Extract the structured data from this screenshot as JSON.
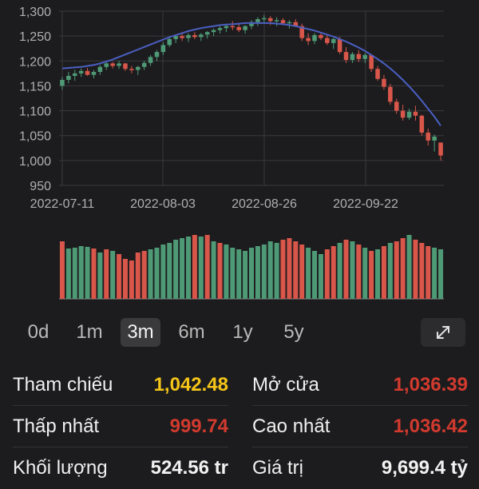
{
  "chart_data": {
    "type": "candlestick",
    "y_ticks": [
      1300,
      1250,
      1200,
      1150,
      1100,
      1050,
      1000,
      950
    ],
    "ylim": [
      950,
      1300
    ],
    "x_ticks": [
      "2022-07-11",
      "2022-08-03",
      "2022-08-26",
      "2022-09-22"
    ],
    "grid": true,
    "candles": [
      [
        1150,
        1168,
        1142,
        1162
      ],
      [
        1162,
        1178,
        1155,
        1170
      ],
      [
        1170,
        1182,
        1160,
        1175
      ],
      [
        1175,
        1185,
        1168,
        1180
      ],
      [
        1180,
        1186,
        1170,
        1172
      ],
      [
        1172,
        1182,
        1165,
        1178
      ],
      [
        1178,
        1192,
        1172,
        1188
      ],
      [
        1188,
        1200,
        1182,
        1195
      ],
      [
        1195,
        1198,
        1185,
        1190
      ],
      [
        1190,
        1200,
        1184,
        1195
      ],
      [
        1195,
        1196,
        1180,
        1184
      ],
      [
        1184,
        1190,
        1175,
        1182
      ],
      [
        1182,
        1190,
        1172,
        1188
      ],
      [
        1188,
        1200,
        1182,
        1196
      ],
      [
        1196,
        1212,
        1190,
        1208
      ],
      [
        1208,
        1222,
        1200,
        1218
      ],
      [
        1218,
        1238,
        1212,
        1232
      ],
      [
        1232,
        1248,
        1228,
        1244
      ],
      [
        1244,
        1252,
        1236,
        1250
      ],
      [
        1250,
        1255,
        1240,
        1246
      ],
      [
        1246,
        1256,
        1238,
        1252
      ],
      [
        1252,
        1258,
        1244,
        1248
      ],
      [
        1248,
        1256,
        1240,
        1253
      ],
      [
        1253,
        1260,
        1245,
        1258
      ],
      [
        1258,
        1265,
        1250,
        1262
      ],
      [
        1262,
        1270,
        1255,
        1266
      ],
      [
        1266,
        1275,
        1258,
        1270
      ],
      [
        1270,
        1280,
        1262,
        1268
      ],
      [
        1268,
        1276,
        1258,
        1262
      ],
      [
        1262,
        1272,
        1255,
        1270
      ],
      [
        1270,
        1282,
        1264,
        1278
      ],
      [
        1278,
        1288,
        1270,
        1284
      ],
      [
        1284,
        1292,
        1275,
        1286
      ],
      [
        1286,
        1290,
        1272,
        1280
      ],
      [
        1280,
        1288,
        1270,
        1282
      ],
      [
        1282,
        1286,
        1272,
        1276
      ],
      [
        1276,
        1282,
        1265,
        1278
      ],
      [
        1278,
        1284,
        1268,
        1270
      ],
      [
        1270,
        1275,
        1240,
        1246
      ],
      [
        1246,
        1256,
        1232,
        1240
      ],
      [
        1240,
        1256,
        1234,
        1252
      ],
      [
        1252,
        1258,
        1242,
        1246
      ],
      [
        1246,
        1252,
        1232,
        1236
      ],
      [
        1236,
        1246,
        1224,
        1244
      ],
      [
        1244,
        1248,
        1214,
        1218
      ],
      [
        1218,
        1228,
        1196,
        1202
      ],
      [
        1202,
        1218,
        1196,
        1214
      ],
      [
        1214,
        1222,
        1198,
        1204
      ],
      [
        1204,
        1216,
        1196,
        1212
      ],
      [
        1212,
        1214,
        1178,
        1184
      ],
      [
        1184,
        1190,
        1160,
        1164
      ],
      [
        1164,
        1172,
        1142,
        1148
      ],
      [
        1148,
        1154,
        1112,
        1118
      ],
      [
        1118,
        1124,
        1094,
        1100
      ],
      [
        1100,
        1112,
        1080,
        1086
      ],
      [
        1086,
        1104,
        1082,
        1098
      ],
      [
        1098,
        1110,
        1080,
        1090
      ],
      [
        1090,
        1092,
        1050,
        1056
      ],
      [
        1056,
        1064,
        1030,
        1040
      ],
      [
        1040,
        1052,
        1018,
        1048
      ],
      [
        1036,
        1036,
        1000,
        1010
      ]
    ],
    "ma": [
      1185,
      1186,
      1187,
      1188,
      1190,
      1192,
      1195,
      1199,
      1203,
      1208,
      1213,
      1218,
      1223,
      1228,
      1233,
      1238,
      1243,
      1248,
      1252,
      1256,
      1260,
      1263,
      1266,
      1268,
      1270,
      1272,
      1273,
      1274,
      1275,
      1276,
      1276,
      1276,
      1276,
      1276,
      1275,
      1274,
      1272,
      1270,
      1267,
      1264,
      1261,
      1257,
      1253,
      1249,
      1244,
      1239,
      1233,
      1227,
      1220,
      1212,
      1204,
      1195,
      1185,
      1174,
      1162,
      1149,
      1135,
      1120,
      1104,
      1088,
      1070
    ],
    "ma_start": 22,
    "volumes": [
      72,
      63,
      64,
      66,
      65,
      63,
      58,
      62,
      60,
      56,
      50,
      48,
      58,
      60,
      62,
      64,
      68,
      70,
      74,
      76,
      78,
      80,
      78,
      80,
      72,
      70,
      68,
      64,
      62,
      60,
      64,
      66,
      68,
      72,
      70,
      74,
      76,
      72,
      68,
      64,
      60,
      56,
      62,
      66,
      70,
      74,
      72,
      68,
      64,
      60,
      62,
      66,
      70,
      72,
      76,
      80,
      74,
      70,
      66,
      64,
      62
    ],
    "volume_colors": [
      "r",
      "g",
      "g",
      "g",
      "g",
      "r",
      "g",
      "r",
      "g",
      "r",
      "r",
      "r",
      "r",
      "r",
      "g",
      "g",
      "g",
      "g",
      "g",
      "g",
      "g",
      "r",
      "g",
      "r",
      "g",
      "r",
      "g",
      "g",
      "g",
      "g",
      "g",
      "g",
      "g",
      "g",
      "g",
      "r",
      "r",
      "r",
      "r",
      "g",
      "g",
      "g",
      "r",
      "r",
      "g",
      "r",
      "g",
      "r",
      "g",
      "r",
      "g",
      "r",
      "g",
      "r",
      "r",
      "g",
      "r",
      "r",
      "r",
      "g",
      "g"
    ]
  },
  "colors": {
    "up": "#4f9a76",
    "down": "#d9564a",
    "ma": "#4a5fc1",
    "grid": "#3a3a3c",
    "axis_text": "#b0b0b0"
  },
  "tabs": [
    {
      "label": "0d",
      "active": false
    },
    {
      "label": "1m",
      "active": false
    },
    {
      "label": "3m",
      "active": true
    },
    {
      "label": "6m",
      "active": false
    },
    {
      "label": "1y",
      "active": false
    },
    {
      "label": "5y",
      "active": false
    }
  ],
  "expand_icon": "expand-arrows-icon",
  "stats": {
    "ref_label": "Tham chiếu",
    "ref_value": "1,042.48",
    "ref_color": "#f5c518",
    "open_label": "Mở cửa",
    "open_value": "1,036.39",
    "open_color": "#d23a2e",
    "low_label": "Thấp nhất",
    "low_value": "999.74",
    "low_color": "#d23a2e",
    "high_label": "Cao nhất",
    "high_value": "1,036.42",
    "high_color": "#d23a2e",
    "vol_label": "Khối lượng",
    "vol_value": "524.56 tr",
    "vol_color": "#f2f2f2",
    "val_label": "Giá trị",
    "val_value": "9,699.4 tỷ",
    "val_color": "#f2f2f2"
  }
}
